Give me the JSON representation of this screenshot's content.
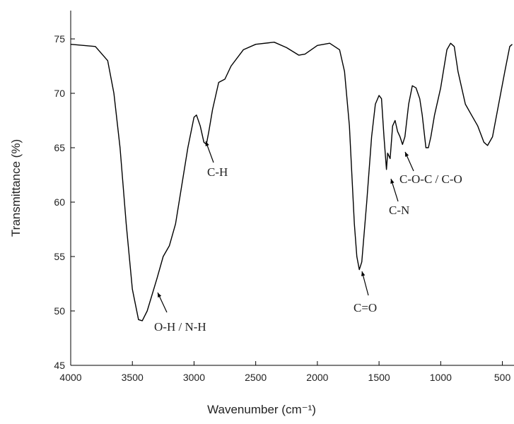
{
  "chart_data": {
    "type": "line",
    "xlabel": "Wavenumber (cm⁻¹)",
    "ylabel": "Transmittance (%)",
    "xlim": [
      4000,
      400
    ],
    "ylim": [
      45,
      77.6
    ],
    "xticks": [
      4000,
      3500,
      3000,
      2500,
      2000,
      1500,
      1000,
      500
    ],
    "yticks": [
      45,
      50,
      55,
      60,
      65,
      70,
      75
    ],
    "color": "#000000",
    "x": [
      4000,
      3800,
      3700,
      3650,
      3600,
      3550,
      3500,
      3450,
      3420,
      3380,
      3300,
      3250,
      3200,
      3150,
      3100,
      3050,
      3000,
      2980,
      2950,
      2920,
      2900,
      2880,
      2850,
      2800,
      2750,
      2700,
      2600,
      2500,
      2350,
      2250,
      2150,
      2100,
      2000,
      1900,
      1820,
      1780,
      1740,
      1700,
      1680,
      1660,
      1640,
      1600,
      1560,
      1530,
      1500,
      1480,
      1460,
      1440,
      1430,
      1410,
      1390,
      1370,
      1350,
      1330,
      1310,
      1290,
      1260,
      1230,
      1200,
      1170,
      1150,
      1120,
      1100,
      1080,
      1050,
      1000,
      950,
      920,
      890,
      860,
      800,
      750,
      700,
      650,
      620,
      580,
      530,
      480,
      440,
      420
    ],
    "values": [
      74.5,
      74.3,
      73,
      70,
      65,
      58,
      52,
      49.2,
      49.1,
      50,
      53,
      55,
      56,
      58,
      61.5,
      65,
      67.8,
      68,
      67,
      65.5,
      65.3,
      66.5,
      68.5,
      71,
      71.3,
      72.5,
      74,
      74.5,
      74.7,
      74.2,
      73.5,
      73.6,
      74.4,
      74.6,
      74,
      72,
      67,
      58,
      55,
      53.8,
      54.5,
      60,
      66,
      69,
      69.8,
      69.5,
      66,
      63,
      64.5,
      64,
      67,
      67.5,
      66.5,
      66,
      65.3,
      66,
      69,
      70.7,
      70.5,
      69.5,
      68,
      65,
      65,
      66,
      68,
      70.5,
      74,
      74.6,
      74.3,
      72,
      69,
      68,
      67,
      65.5,
      65.2,
      66,
      69,
      72,
      74.3,
      74.5
    ],
    "annotations": [
      "O-H / N-H",
      "C-H",
      "C=O",
      "C-N",
      "C-O-C / C-O"
    ]
  }
}
